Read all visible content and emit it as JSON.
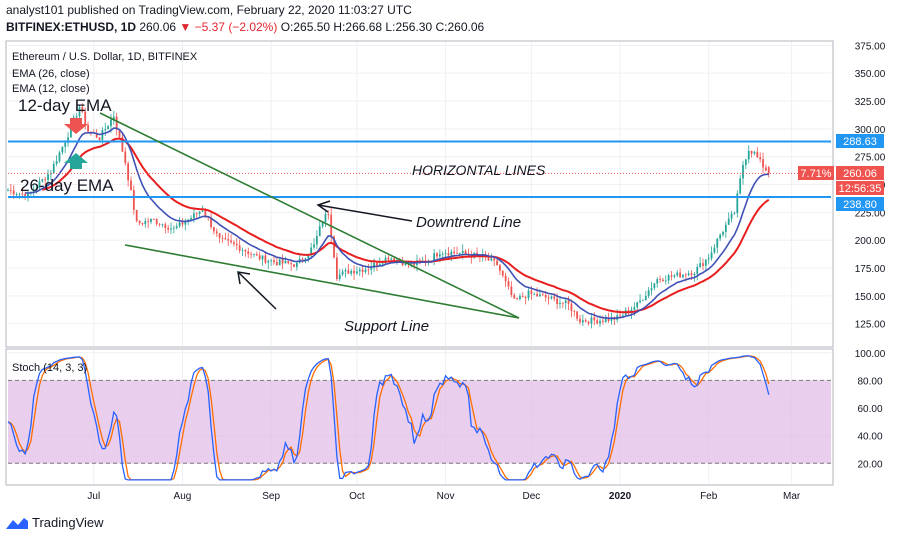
{
  "header": {
    "published_line": "analyst101 published on TradingView.com, February 22, 2020 11:03:27 UTC",
    "symbol": "BITFINEX:ETHUSD, 1D",
    "price": "260.06",
    "change": "▼ −5.37 (−2.02%)",
    "ohlc": "O:265.50 H:266.68 L:256.30 C:260.06"
  },
  "legend": {
    "title": "Ethereum / U.S. Dollar, 1D, BITFINEX",
    "ema26": "EMA (26, close)",
    "ema12": "EMA (12, close)"
  },
  "annotations": {
    "ema12_label": "12-day EMA",
    "ema26_label": "26-day EMA",
    "horizontal_lines": "HORIZONTAL LINES",
    "downtrend": "Downtrend Line",
    "support": "Support Line"
  },
  "price_tags": {
    "upper": "288.63",
    "current": "260.06",
    "pct": "7.71%",
    "countdown": "12:56:35",
    "lower": "238.80"
  },
  "stoch": {
    "label": "Stoch (14, 3, 3)",
    "ticks": [
      "100.00",
      "80.00",
      "60.00",
      "40.00",
      "20.00"
    ]
  },
  "footer": {
    "brand": "TradingView"
  },
  "colors": {
    "up": "#26a69a",
    "down": "#ef5350",
    "ema12": "#3f51b5",
    "ema26": "#e91e1e",
    "hline": "#2196f3",
    "trend": "#2e7d32",
    "stoch_k": "#2962ff",
    "stoch_d": "#ff6d00",
    "stoch_band": "#e1bee7"
  },
  "chart_data": {
    "type": "candlestick",
    "title": "Ethereum / U.S. Dollar, 1D, BITFINEX",
    "x_ticks": [
      "Jul",
      "Aug",
      "Sep",
      "Oct",
      "Nov",
      "Dec",
      "2020",
      "Feb",
      "Mar"
    ],
    "y_ticks": [
      "375.00",
      "350.00",
      "325.00",
      "300.00",
      "275.00",
      "250.00",
      "225.00",
      "200.00",
      "175.00",
      "150.00",
      "125.00"
    ],
    "ylim": [
      105,
      378
    ],
    "grid": true,
    "horizontal_lines": [
      288.63,
      238.8
    ],
    "close_series": {
      "start": "2019-06-01",
      "end": "2020-02-22",
      "keypoints": [
        [
          "2019-06-01",
          245
        ],
        [
          "2019-06-08",
          240
        ],
        [
          "2019-06-16",
          262
        ],
        [
          "2019-06-22",
          295
        ],
        [
          "2019-06-26",
          320
        ],
        [
          "2019-06-29",
          298
        ],
        [
          "2019-07-03",
          292
        ],
        [
          "2019-07-08",
          312
        ],
        [
          "2019-07-12",
          270
        ],
        [
          "2019-07-16",
          215
        ],
        [
          "2019-07-22",
          218
        ],
        [
          "2019-07-29",
          210
        ],
        [
          "2019-08-05",
          222
        ],
        [
          "2019-08-08",
          228
        ],
        [
          "2019-08-14",
          200
        ],
        [
          "2019-08-20",
          195
        ],
        [
          "2019-08-27",
          185
        ],
        [
          "2019-09-03",
          180
        ],
        [
          "2019-09-10",
          178
        ],
        [
          "2019-09-16",
          195
        ],
        [
          "2019-09-19",
          218
        ],
        [
          "2019-09-21",
          225
        ],
        [
          "2019-09-24",
          168
        ],
        [
          "2019-09-28",
          172
        ],
        [
          "2019-10-05",
          175
        ],
        [
          "2019-10-12",
          185
        ],
        [
          "2019-10-20",
          178
        ],
        [
          "2019-10-26",
          182
        ],
        [
          "2019-10-30",
          190
        ],
        [
          "2019-11-07",
          188
        ],
        [
          "2019-11-14",
          185
        ],
        [
          "2019-11-19",
          178
        ],
        [
          "2019-11-25",
          145
        ],
        [
          "2019-11-30",
          152
        ],
        [
          "2019-12-07",
          148
        ],
        [
          "2019-12-14",
          142
        ],
        [
          "2019-12-18",
          128
        ],
        [
          "2019-12-24",
          128
        ],
        [
          "2019-12-31",
          130
        ],
        [
          "2020-01-07",
          142
        ],
        [
          "2020-01-14",
          165
        ],
        [
          "2020-01-20",
          168
        ],
        [
          "2020-01-27",
          172
        ],
        [
          "2020-02-01",
          185
        ],
        [
          "2020-02-05",
          205
        ],
        [
          "2020-02-10",
          225
        ],
        [
          "2020-02-13",
          268
        ],
        [
          "2020-02-15",
          282
        ],
        [
          "2020-02-17",
          278
        ],
        [
          "2020-02-19",
          270
        ],
        [
          "2020-02-22",
          260.06
        ]
      ]
    },
    "last_candle": {
      "date": "2020-02-22",
      "open": 265.5,
      "high": 266.68,
      "low": 256.3,
      "close": 260.06
    }
  }
}
